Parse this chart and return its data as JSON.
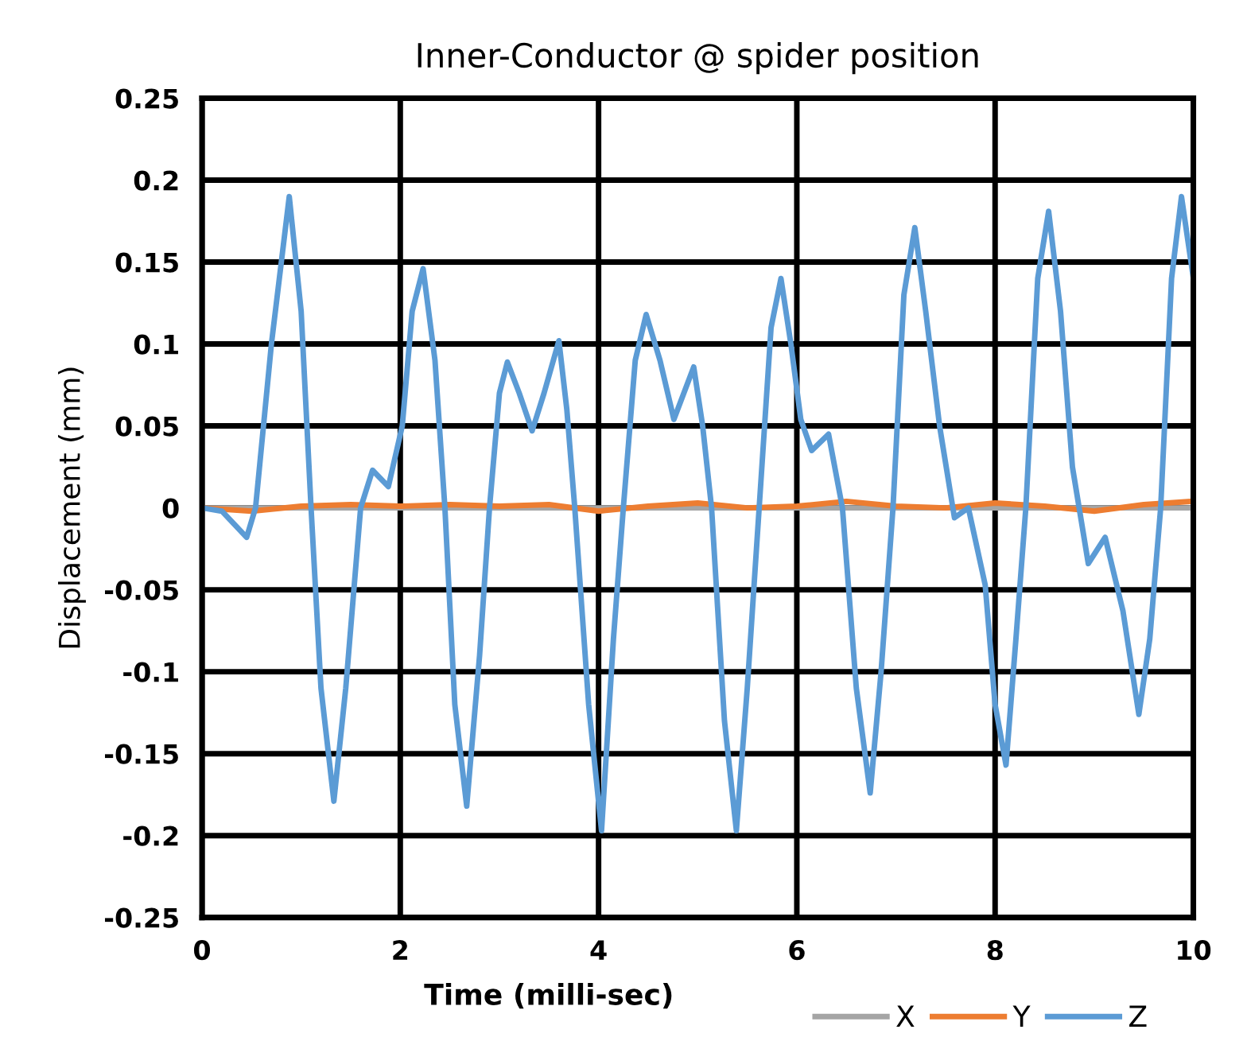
{
  "chart_data": {
    "type": "line",
    "title": "Inner-Conductor @ spider position",
    "xlabel": "Time (milli-sec)",
    "ylabel": "Displacement (mm)",
    "xlim": [
      0,
      10
    ],
    "xticks": [
      0,
      2,
      4,
      6,
      8,
      10
    ],
    "ylim": [
      -0.25,
      0.25
    ],
    "yticks": [
      -0.25,
      -0.2,
      -0.15,
      -0.1,
      -0.05,
      0,
      0.05,
      0.1,
      0.15,
      0.2,
      0.25
    ],
    "grid": true,
    "legend": "bottom right",
    "marker": "none",
    "line_style": "solid",
    "series": [
      {
        "name": "X",
        "color": "#a5a5a5",
        "x": [
          0,
          2,
          4,
          6,
          8,
          10
        ],
        "values": [
          0,
          0,
          0,
          0,
          0,
          0
        ]
      },
      {
        "name": "Y",
        "color": "#ed7d31",
        "x": [
          0,
          0.5,
          1,
          1.5,
          2,
          2.5,
          3,
          3.5,
          4,
          4.5,
          5,
          5.5,
          6,
          6.5,
          7,
          7.5,
          8,
          8.5,
          9,
          9.5,
          10
        ],
        "values": [
          0,
          -0.002,
          0.001,
          0.002,
          0.001,
          0.002,
          0.001,
          0.002,
          -0.002,
          0.001,
          0.003,
          0,
          0.001,
          0.004,
          0.001,
          0,
          0.003,
          0.001,
          -0.002,
          0.002,
          0.004
        ]
      },
      {
        "name": "Z",
        "color": "#5b9bd5",
        "x": [
          0,
          0.2,
          0.45,
          0.54,
          0.7,
          0.88,
          1.0,
          1.1,
          1.2,
          1.33,
          1.45,
          1.6,
          1.72,
          1.88,
          2.02,
          2.12,
          2.23,
          2.35,
          2.45,
          2.55,
          2.67,
          2.8,
          2.9,
          3.0,
          3.08,
          3.2,
          3.33,
          3.45,
          3.6,
          3.68,
          3.76,
          3.9,
          4.03,
          4.15,
          4.25,
          4.37,
          4.48,
          4.62,
          4.76,
          4.96,
          5.05,
          5.14,
          5.27,
          5.39,
          5.5,
          5.62,
          5.74,
          5.84,
          5.94,
          6.04,
          6.15,
          6.32,
          6.46,
          6.6,
          6.74,
          6.85,
          6.97,
          7.08,
          7.19,
          7.3,
          7.44,
          7.59,
          7.73,
          7.9,
          8.0,
          8.11,
          8.21,
          8.31,
          8.43,
          8.54,
          8.66,
          8.78,
          8.94,
          9.11,
          9.29,
          9.45,
          9.56,
          9.67,
          9.78,
          9.88,
          10.0
        ],
        "values": [
          0,
          -0.002,
          -0.018,
          0,
          0.1,
          0.19,
          0.12,
          0,
          -0.11,
          -0.179,
          -0.11,
          0,
          0.023,
          0.013,
          0.05,
          0.12,
          0.146,
          0.09,
          0,
          -0.12,
          -0.182,
          -0.09,
          0,
          0.07,
          0.089,
          0.07,
          0.047,
          0.07,
          0.102,
          0.06,
          0,
          -0.12,
          -0.197,
          -0.08,
          0,
          0.09,
          0.118,
          0.09,
          0.054,
          0.086,
          0.05,
          0,
          -0.13,
          -0.197,
          -0.11,
          0,
          0.11,
          0.14,
          0.1,
          0.054,
          0.035,
          0.045,
          0,
          -0.11,
          -0.174,
          -0.1,
          0,
          0.13,
          0.171,
          0.12,
          0.05,
          -0.006,
          0,
          -0.047,
          -0.12,
          -0.157,
          -0.08,
          0,
          0.14,
          0.181,
          0.12,
          0.025,
          -0.034,
          -0.018,
          -0.063,
          -0.126,
          -0.08,
          0,
          0.14,
          0.19,
          0.14
        ]
      }
    ]
  }
}
